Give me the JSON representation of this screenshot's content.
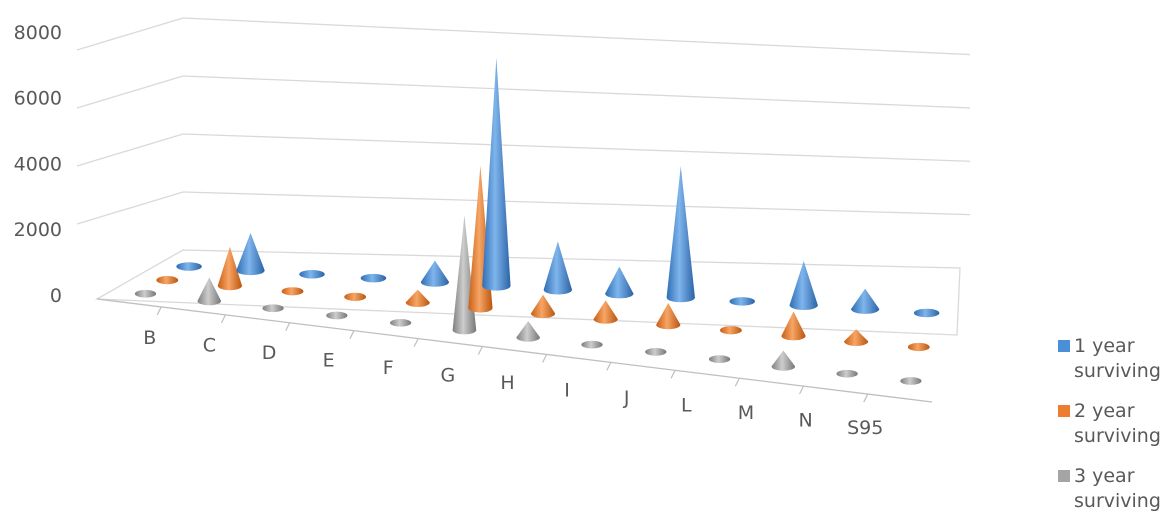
{
  "chart_data": {
    "type": "bar",
    "style": "3d-cone",
    "categories": [
      "B",
      "C",
      "D",
      "E",
      "F",
      "G",
      "H",
      "I",
      "J",
      "L",
      "M",
      "N",
      "S95"
    ],
    "series": [
      {
        "name": "1 year surviving",
        "color": "#4A90D9",
        "values": [
          100,
          1200,
          100,
          100,
          700,
          7500,
          1600,
          900,
          4400,
          200,
          1500,
          700,
          200
        ]
      },
      {
        "name": "2 year surviving",
        "color": "#ED7D31",
        "values": [
          100,
          1200,
          100,
          100,
          400,
          4500,
          600,
          600,
          700,
          100,
          800,
          400,
          100
        ]
      },
      {
        "name": "3 year surviving",
        "color": "#A5A5A5",
        "values": [
          100,
          700,
          100,
          100,
          100,
          3500,
          500,
          200,
          200,
          100,
          500,
          100,
          100
        ]
      }
    ],
    "y_ticks": [
      "0",
      "2000",
      "4000",
      "6000",
      "8000"
    ],
    "ylim": [
      0,
      8000
    ],
    "grid": true,
    "legend_position": "right"
  }
}
